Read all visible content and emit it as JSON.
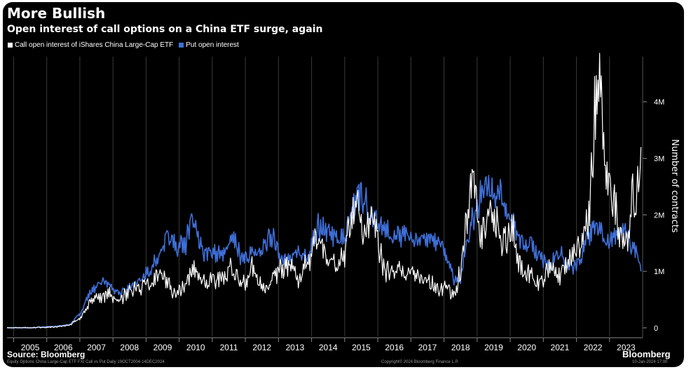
{
  "header": {
    "title": "More Bullish",
    "subtitle": "Open interest of call options on a China ETF surge, again"
  },
  "legend": {
    "call_label": "Call open interest of iShares China Large-Cap ETF",
    "put_label": "Put open interest"
  },
  "footer": {
    "source": "Source: Bloomberg",
    "footnote": "Equity Options China Large-Cap ETF FXI Call vs Put Daily 19OCT2004-14DEC2024",
    "copyright": "Copyright© 2024 Bloomberg Finance L.P.",
    "date": "10-Jan-2024 17:00",
    "brand": "Bloomberg"
  },
  "colors": {
    "background": "#000000",
    "call": "#ffffff",
    "put": "#3e6fd8",
    "grid": "#3a3a3a",
    "axis_text": "#ffffff"
  },
  "chart_data": {
    "type": "line",
    "title": "More Bullish",
    "subtitle": "Open interest of call options on a China ETF surge, again",
    "xlabel": "",
    "ylabel": "Number of contracts",
    "xlim": [
      2004.8,
      2024.0
    ],
    "ylim": [
      -150000,
      4800000
    ],
    "grid": true,
    "legend_position": "top-left",
    "x_tick_labels": [
      "2005",
      "2006",
      "2007",
      "2008",
      "2009",
      "2010",
      "2011",
      "2012",
      "2013",
      "2014",
      "2015",
      "2016",
      "2017",
      "2018",
      "2019",
      "2020",
      "2021",
      "2022",
      "2023"
    ],
    "y_tick_labels": [
      "0",
      "1M",
      "2M",
      "3M",
      "4M"
    ],
    "series": [
      {
        "name": "Call open interest of iShares China Large-Cap ETF",
        "color": "#ffffff",
        "x": [
          2004.8,
          2005.5,
          2006.3,
          2006.7,
          2007.0,
          2007.3,
          2007.6,
          2007.9,
          2008.2,
          2008.5,
          2008.8,
          2009.1,
          2009.4,
          2009.6,
          2009.9,
          2010.2,
          2010.4,
          2010.7,
          2011.0,
          2011.3,
          2011.6,
          2011.9,
          2012.2,
          2012.5,
          2012.8,
          2013.1,
          2013.4,
          2013.6,
          2013.9,
          2014.2,
          2014.5,
          2014.8,
          2015.0,
          2015.2,
          2015.4,
          2015.6,
          2015.8,
          2016.0,
          2016.2,
          2016.5,
          2016.8,
          2017.1,
          2017.4,
          2017.7,
          2017.9,
          2018.1,
          2018.3,
          2018.5,
          2018.7,
          2018.9,
          2019.1,
          2019.3,
          2019.5,
          2019.7,
          2019.9,
          2020.1,
          2020.3,
          2020.6,
          2020.9,
          2021.2,
          2021.5,
          2021.8,
          2022.0,
          2022.2,
          2022.4,
          2022.55,
          2022.7,
          2022.9,
          2023.1,
          2023.3,
          2023.5,
          2023.7,
          2023.8,
          2023.95
        ],
        "values": [
          0,
          0,
          20000,
          50000,
          180000,
          450000,
          550000,
          600000,
          450000,
          700000,
          700000,
          750000,
          950000,
          850000,
          550000,
          800000,
          1050000,
          800000,
          850000,
          950000,
          1050000,
          750000,
          1050000,
          700000,
          850000,
          1100000,
          1000000,
          800000,
          1200000,
          1650000,
          1300000,
          1050000,
          1300000,
          1950000,
          2200000,
          1700000,
          1900000,
          1550000,
          1050000,
          950000,
          1050000,
          900000,
          850000,
          750000,
          700000,
          750000,
          550000,
          1000000,
          2100000,
          2500000,
          1700000,
          2000000,
          2000000,
          1550000,
          1600000,
          1700000,
          1050000,
          900000,
          800000,
          1100000,
          950000,
          1250000,
          1450000,
          1600000,
          2100000,
          3700000,
          4250000,
          2700000,
          2250000,
          1700000,
          1500000,
          2400000,
          2050000,
          3200000
        ]
      },
      {
        "name": "Put open interest",
        "color": "#3e6fd8",
        "x": [
          2004.8,
          2005.5,
          2006.3,
          2006.7,
          2007.0,
          2007.3,
          2007.6,
          2007.9,
          2008.2,
          2008.5,
          2008.8,
          2009.1,
          2009.4,
          2009.6,
          2009.9,
          2010.2,
          2010.4,
          2010.7,
          2011.0,
          2011.3,
          2011.6,
          2011.9,
          2012.2,
          2012.5,
          2012.8,
          2013.1,
          2013.4,
          2013.6,
          2013.9,
          2014.2,
          2014.5,
          2014.8,
          2015.0,
          2015.2,
          2015.4,
          2015.6,
          2015.8,
          2016.0,
          2016.2,
          2016.5,
          2016.8,
          2017.1,
          2017.4,
          2017.7,
          2017.9,
          2018.1,
          2018.3,
          2018.5,
          2018.7,
          2018.9,
          2019.1,
          2019.3,
          2019.5,
          2019.7,
          2019.9,
          2020.1,
          2020.3,
          2020.6,
          2020.9,
          2021.2,
          2021.5,
          2021.8,
          2022.0,
          2022.2,
          2022.4,
          2022.55,
          2022.7,
          2022.9,
          2023.1,
          2023.3,
          2023.5,
          2023.7,
          2023.8,
          2023.95
        ],
        "values": [
          0,
          0,
          30000,
          60000,
          250000,
          600000,
          850000,
          700000,
          600000,
          700000,
          850000,
          1000000,
          1300000,
          1650000,
          1450000,
          1500000,
          2000000,
          1300000,
          1400000,
          1250000,
          1600000,
          1200000,
          1350000,
          1400000,
          1650000,
          1250000,
          1200000,
          1400000,
          1300000,
          1800000,
          1750000,
          1550000,
          1550000,
          2100000,
          2400000,
          2300000,
          2000000,
          1850000,
          1700000,
          1650000,
          1650000,
          1550000,
          1600000,
          1600000,
          1450000,
          1250000,
          850000,
          900000,
          1550000,
          2000000,
          2300000,
          2700000,
          2250000,
          2400000,
          2000000,
          1800000,
          1500000,
          1500000,
          1300000,
          1100000,
          1300000,
          1100000,
          1100000,
          1400000,
          1700000,
          1800000,
          1750000,
          1500000,
          1500000,
          1750000,
          1700000,
          1450000,
          1300000,
          1000000
        ]
      }
    ]
  }
}
